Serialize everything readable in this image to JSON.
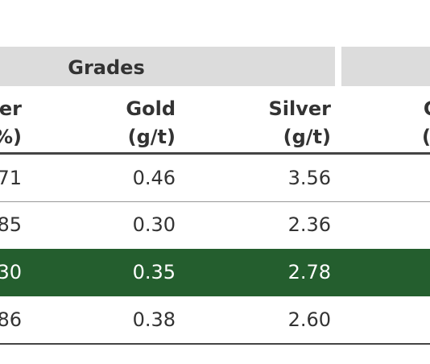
{
  "table": {
    "group_header": "Grades",
    "columns": [
      {
        "line1": "er",
        "line2": "%)"
      },
      {
        "line1": "Gold",
        "line2": "(g/t)"
      },
      {
        "line1": "Silver",
        "line2": "(g/t)"
      },
      {
        "line1": "Co",
        "line2": "(m"
      }
    ],
    "rows": [
      [
        "71",
        "0.46",
        "3.56"
      ],
      [
        "85",
        "0.30",
        "2.36"
      ],
      [
        "30",
        "0.35",
        "2.78"
      ],
      [
        "86",
        "0.38",
        "2.60"
      ]
    ],
    "highlight_row": 2
  }
}
